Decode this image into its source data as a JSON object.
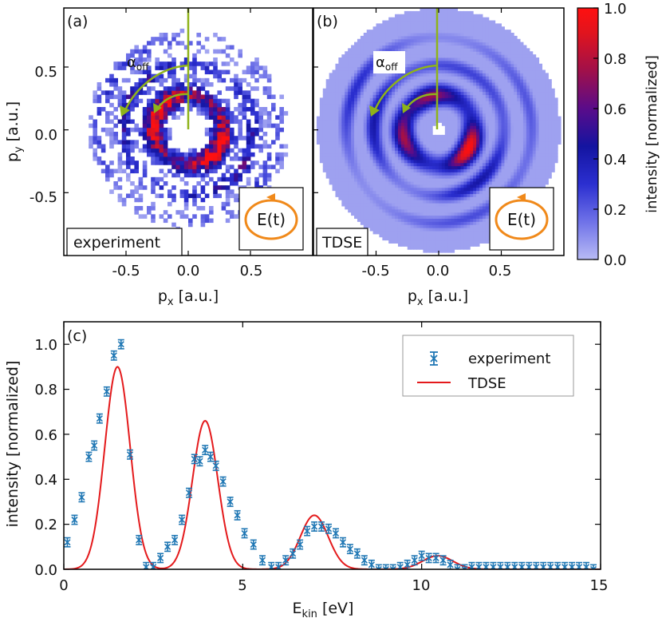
{
  "figure": {
    "panel_a": {
      "tag": "(a)",
      "label_box": "experiment",
      "xlabel_main": "p",
      "xlabel_sub": "x",
      "xlabel_unit": "[a.u.]",
      "ylabel_main": "p",
      "ylabel_sub": "y",
      "ylabel_unit": "[a.u.]",
      "xticks": [
        "-0.5",
        "0.0",
        "0.5"
      ],
      "yticks": [
        "0.5",
        "0.0",
        "-0.5"
      ]
    },
    "panel_b": {
      "tag": "(b)",
      "label_box": "TDSE",
      "xlabel_main": "p",
      "xlabel_sub": "x",
      "xlabel_unit": "[a.u.]",
      "xticks": [
        "-0.5",
        "0.0",
        "0.5"
      ]
    },
    "alpha_main": "α",
    "alpha_sub": "off",
    "field_label": "E(t)",
    "colorbar": {
      "label": "intensity [normalized]",
      "ticks": [
        "1.0",
        "0.8",
        "0.6",
        "0.4",
        "0.2",
        "0.0"
      ],
      "colors": [
        "#b8bbf5",
        "#6f72e8",
        "#2b2fd0",
        "#1414a0",
        "#5a0c8a",
        "#a0104a",
        "#e0141e",
        "#ff1010"
      ]
    },
    "panel_c": {
      "tag": "(c)",
      "xlabel_main": "E",
      "xlabel_sub": "kin",
      "xlabel_unit": "[eV]",
      "ylabel": "intensity [normalized]",
      "xticks": [
        "0",
        "5",
        "10",
        "15"
      ],
      "yticks": [
        "0.0",
        "0.2",
        "0.4",
        "0.6",
        "0.8",
        "1.0"
      ]
    },
    "series_colors": {
      "experiment": "#1f77b4",
      "tdse": "#e41a1c"
    }
  },
  "chart_data": [
    {
      "panel": "(a)",
      "type": "heatmap",
      "title": "experiment",
      "xlabel": "px [a.u.]",
      "ylabel": "py [a.u.]",
      "xlim": [
        -1.0,
        1.0
      ],
      "ylim": [
        -1.0,
        0.97
      ],
      "rings": [
        {
          "radius": 0.28,
          "width": 0.09,
          "peak": 0.95
        },
        {
          "radius": 0.52,
          "width": 0.07,
          "peak": 0.45
        },
        {
          "radius": 0.72,
          "width": 0.07,
          "peak": 0.25
        }
      ],
      "max_angle_deg": 150
    },
    {
      "panel": "(b)",
      "type": "heatmap",
      "title": "TDSE",
      "xlabel": "px [a.u.]",
      "xlim": [
        -1.0,
        1.0
      ],
      "ylim": [
        -1.0,
        0.97
      ],
      "rings": [
        {
          "radius": 0.28,
          "width": 0.08,
          "peak": 1.0
        },
        {
          "radius": 0.52,
          "width": 0.06,
          "peak": 0.45
        },
        {
          "radius": 0.74,
          "width": 0.06,
          "peak": 0.3
        }
      ],
      "max_angle_deg": 150
    },
    {
      "panel": "(c)",
      "type": "line",
      "xlabel": "Ekin [eV]",
      "ylabel": "intensity [normalized]",
      "xlim": [
        0,
        15
      ],
      "ylim": [
        0,
        1.1
      ],
      "legend": [
        "experiment",
        "TDSE"
      ],
      "legend_position": "top-right",
      "series": [
        {
          "name": "experiment",
          "style": "errorbar",
          "x": [
            0.1,
            0.3,
            0.5,
            0.7,
            0.85,
            1.0,
            1.2,
            1.4,
            1.6,
            1.85,
            2.1,
            2.3,
            2.5,
            2.7,
            2.9,
            3.1,
            3.3,
            3.5,
            3.65,
            3.8,
            3.95,
            4.1,
            4.25,
            4.45,
            4.65,
            4.85,
            5.05,
            5.3,
            5.55,
            5.8,
            6.0,
            6.2,
            6.4,
            6.6,
            6.8,
            7.0,
            7.2,
            7.4,
            7.6,
            7.8,
            8.0,
            8.2,
            8.4,
            8.6,
            8.8,
            9.0,
            9.2,
            9.4,
            9.6,
            9.8,
            10.0,
            10.2,
            10.4,
            10.6,
            10.8,
            11.0,
            11.2,
            11.4,
            11.6,
            11.8,
            12.0,
            12.2,
            12.4,
            12.6,
            12.8,
            13.0,
            13.2,
            13.4,
            13.6,
            13.8,
            14.0,
            14.2,
            14.4,
            14.6,
            14.8
          ],
          "y": [
            0.12,
            0.22,
            0.32,
            0.5,
            0.55,
            0.67,
            0.79,
            0.95,
            1.0,
            0.51,
            0.13,
            0.01,
            0.01,
            0.05,
            0.1,
            0.13,
            0.22,
            0.34,
            0.49,
            0.48,
            0.53,
            0.5,
            0.46,
            0.39,
            0.3,
            0.24,
            0.16,
            0.11,
            0.04,
            0.01,
            0.01,
            0.04,
            0.07,
            0.11,
            0.17,
            0.19,
            0.19,
            0.18,
            0.16,
            0.12,
            0.09,
            0.07,
            0.04,
            0.02,
            0.0,
            0.0,
            0.0,
            0.01,
            0.02,
            0.04,
            0.06,
            0.05,
            0.05,
            0.04,
            0.02,
            0.0,
            0.0,
            0.01,
            0.01,
            0.01,
            0.01,
            0.01,
            0.01,
            0.01,
            0.01,
            0.01,
            0.01,
            0.01,
            0.01,
            0.01,
            0.01,
            0.01,
            0.01,
            0.01,
            0.0
          ],
          "err": 0.02
        },
        {
          "name": "TDSE",
          "style": "line",
          "peaks": [
            {
              "center": 1.5,
              "height": 0.9,
              "width": 0.5
            },
            {
              "center": 3.95,
              "height": 0.66,
              "width": 0.5
            },
            {
              "center": 7.0,
              "height": 0.24,
              "width": 0.55
            },
            {
              "center": 10.45,
              "height": 0.06,
              "width": 0.6
            }
          ]
        }
      ]
    }
  ]
}
